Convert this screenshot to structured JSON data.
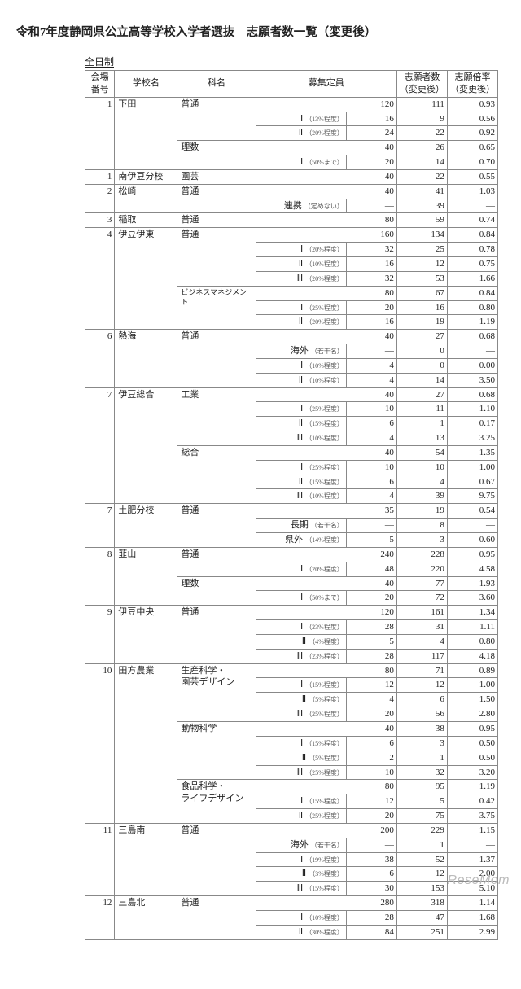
{
  "title": "令和7年度静岡県公立高等学校入学者選抜　志願者数一覧（変更後）",
  "systemLabel": "全日制",
  "headers": {
    "venue": "会場\n番号",
    "school": "学校名",
    "dept": "科名",
    "capacity": "募集定員",
    "applicants": "志願者数\n（変更後）",
    "ratio": "志願倍率\n（変更後）"
  },
  "watermark": "ReseMom",
  "rows": [
    {
      "v": "1",
      "sch": "下田",
      "dept": "普通",
      "sub": "",
      "note": "",
      "cap": "120",
      "app": "111",
      "ratio": "0.93",
      "vSpan": 5,
      "schSpan": 5,
      "deptSpan": 3
    },
    {
      "sub": "Ⅰ",
      "note": "（13%程度）",
      "cap": "16",
      "app": "9",
      "ratio": "0.56"
    },
    {
      "sub": "Ⅱ",
      "note": "（20%程度）",
      "cap": "24",
      "app": "22",
      "ratio": "0.92"
    },
    {
      "dept": "理数",
      "sub": "",
      "note": "",
      "cap": "40",
      "app": "26",
      "ratio": "0.65",
      "deptSpan": 2
    },
    {
      "sub": "Ⅰ",
      "note": "（50%まで）",
      "cap": "20",
      "app": "14",
      "ratio": "0.70"
    },
    {
      "v": "1",
      "sch": "南伊豆分校",
      "dept": "園芸",
      "sub": "",
      "note": "",
      "cap": "40",
      "app": "22",
      "ratio": "0.55",
      "vSpan": 1,
      "schSpan": 1,
      "deptSpan": 1
    },
    {
      "v": "2",
      "sch": "松崎",
      "dept": "普通",
      "sub": "",
      "note": "",
      "cap": "40",
      "app": "41",
      "ratio": "1.03",
      "vSpan": 2,
      "schSpan": 2,
      "deptSpan": 2
    },
    {
      "sub": "連携",
      "note": "（定めない）",
      "cap": "—",
      "app": "39",
      "ratio": "—"
    },
    {
      "v": "3",
      "sch": "稲取",
      "dept": "普通",
      "sub": "",
      "note": "",
      "cap": "80",
      "app": "59",
      "ratio": "0.74",
      "vSpan": 1,
      "schSpan": 1,
      "deptSpan": 1
    },
    {
      "v": "4",
      "sch": "伊豆伊東",
      "dept": "普通",
      "sub": "",
      "note": "",
      "cap": "160",
      "app": "134",
      "ratio": "0.84",
      "vSpan": 7,
      "schSpan": 7,
      "deptSpan": 4
    },
    {
      "sub": "Ⅰ",
      "note": "（20%程度）",
      "cap": "32",
      "app": "25",
      "ratio": "0.78"
    },
    {
      "sub": "Ⅱ",
      "note": "（10%程度）",
      "cap": "16",
      "app": "12",
      "ratio": "0.75"
    },
    {
      "sub": "Ⅲ",
      "note": "（20%程度）",
      "cap": "32",
      "app": "53",
      "ratio": "1.66"
    },
    {
      "dept": "ビジネスマネジメント",
      "deptSmall": true,
      "sub": "",
      "note": "",
      "cap": "80",
      "app": "67",
      "ratio": "0.84",
      "deptSpan": 3
    },
    {
      "sub": "Ⅰ",
      "note": "（25%程度）",
      "cap": "20",
      "app": "16",
      "ratio": "0.80"
    },
    {
      "sub": "Ⅱ",
      "note": "（20%程度）",
      "cap": "16",
      "app": "19",
      "ratio": "1.19"
    },
    {
      "v": "6",
      "sch": "熱海",
      "dept": "普通",
      "sub": "",
      "note": "",
      "cap": "40",
      "app": "27",
      "ratio": "0.68",
      "vSpan": 4,
      "schSpan": 4,
      "deptSpan": 4
    },
    {
      "sub": "海外",
      "note": "（若干名）",
      "cap": "—",
      "app": "0",
      "ratio": "—"
    },
    {
      "sub": "Ⅰ",
      "note": "（10%程度）",
      "cap": "4",
      "app": "0",
      "ratio": "0.00"
    },
    {
      "sub": "Ⅱ",
      "note": "（10%程度）",
      "cap": "4",
      "app": "14",
      "ratio": "3.50"
    },
    {
      "v": "7",
      "sch": "伊豆総合",
      "dept": "工業",
      "sub": "",
      "note": "",
      "cap": "40",
      "app": "27",
      "ratio": "0.68",
      "vSpan": 8,
      "schSpan": 8,
      "deptSpan": 4
    },
    {
      "sub": "Ⅰ",
      "note": "（25%程度）",
      "cap": "10",
      "app": "11",
      "ratio": "1.10"
    },
    {
      "sub": "Ⅱ",
      "note": "（15%程度）",
      "cap": "6",
      "app": "1",
      "ratio": "0.17"
    },
    {
      "sub": "Ⅲ",
      "note": "（10%程度）",
      "cap": "4",
      "app": "13",
      "ratio": "3.25"
    },
    {
      "dept": "総合",
      "sub": "",
      "note": "",
      "cap": "40",
      "app": "54",
      "ratio": "1.35",
      "deptSpan": 4
    },
    {
      "sub": "Ⅰ",
      "note": "（25%程度）",
      "cap": "10",
      "app": "10",
      "ratio": "1.00"
    },
    {
      "sub": "Ⅱ",
      "note": "（15%程度）",
      "cap": "6",
      "app": "4",
      "ratio": "0.67"
    },
    {
      "sub": "Ⅲ",
      "note": "（10%程度）",
      "cap": "4",
      "app": "39",
      "ratio": "9.75"
    },
    {
      "v": "7",
      "sch": "土肥分校",
      "dept": "普通",
      "sub": "",
      "note": "",
      "cap": "35",
      "app": "19",
      "ratio": "0.54",
      "vSpan": 3,
      "schSpan": 3,
      "deptSpan": 3
    },
    {
      "sub": "長期",
      "note": "（若干名）",
      "cap": "—",
      "app": "8",
      "ratio": "—"
    },
    {
      "sub": "県外",
      "note": "（14%程度）",
      "cap": "5",
      "app": "3",
      "ratio": "0.60"
    },
    {
      "v": "8",
      "sch": "韮山",
      "dept": "普通",
      "sub": "",
      "note": "",
      "cap": "240",
      "app": "228",
      "ratio": "0.95",
      "vSpan": 4,
      "schSpan": 4,
      "deptSpan": 2
    },
    {
      "sub": "Ⅰ",
      "note": "（20%程度）",
      "cap": "48",
      "app": "220",
      "ratio": "4.58"
    },
    {
      "dept": "理数",
      "sub": "",
      "note": "",
      "cap": "40",
      "app": "77",
      "ratio": "1.93",
      "deptSpan": 2
    },
    {
      "sub": "Ⅰ",
      "note": "（50%まで）",
      "cap": "20",
      "app": "72",
      "ratio": "3.60"
    },
    {
      "v": "9",
      "sch": "伊豆中央",
      "dept": "普通",
      "sub": "",
      "note": "",
      "cap": "120",
      "app": "161",
      "ratio": "1.34",
      "vSpan": 4,
      "schSpan": 4,
      "deptSpan": 4
    },
    {
      "sub": "Ⅰ",
      "note": "（23%程度）",
      "cap": "28",
      "app": "31",
      "ratio": "1.11"
    },
    {
      "sub": "Ⅱ",
      "note": "（4%程度）",
      "cap": "5",
      "app": "4",
      "ratio": "0.80"
    },
    {
      "sub": "Ⅲ",
      "note": "（23%程度）",
      "cap": "28",
      "app": "117",
      "ratio": "4.18"
    },
    {
      "v": "10",
      "sch": "田方農業",
      "dept": "生産科学・\n園芸デザイン",
      "sub": "",
      "note": "",
      "cap": "80",
      "app": "71",
      "ratio": "0.89",
      "vSpan": 11,
      "schSpan": 11,
      "deptSpan": 4
    },
    {
      "sub": "Ⅰ",
      "note": "（15%程度）",
      "cap": "12",
      "app": "12",
      "ratio": "1.00"
    },
    {
      "sub": "Ⅱ",
      "note": "（5%程度）",
      "cap": "4",
      "app": "6",
      "ratio": "1.50"
    },
    {
      "sub": "Ⅲ",
      "note": "（25%程度）",
      "cap": "20",
      "app": "56",
      "ratio": "2.80"
    },
    {
      "dept": "動物科学",
      "sub": "",
      "note": "",
      "cap": "40",
      "app": "38",
      "ratio": "0.95",
      "deptSpan": 4
    },
    {
      "sub": "Ⅰ",
      "note": "（15%程度）",
      "cap": "6",
      "app": "3",
      "ratio": "0.50"
    },
    {
      "sub": "Ⅱ",
      "note": "（5%程度）",
      "cap": "2",
      "app": "1",
      "ratio": "0.50"
    },
    {
      "sub": "Ⅲ",
      "note": "（25%程度）",
      "cap": "10",
      "app": "32",
      "ratio": "3.20"
    },
    {
      "dept": "食品科学・\nライフデザイン",
      "sub": "",
      "note": "",
      "cap": "80",
      "app": "95",
      "ratio": "1.19",
      "deptSpan": 3
    },
    {
      "sub": "Ⅰ",
      "note": "（15%程度）",
      "cap": "12",
      "app": "5",
      "ratio": "0.42"
    },
    {
      "sub": "Ⅱ",
      "note": "（25%程度）",
      "cap": "20",
      "app": "75",
      "ratio": "3.75"
    },
    {
      "v": "11",
      "sch": "三島南",
      "dept": "普通",
      "sub": "",
      "note": "",
      "cap": "200",
      "app": "229",
      "ratio": "1.15",
      "vSpan": 5,
      "schSpan": 5,
      "deptSpan": 5
    },
    {
      "sub": "海外",
      "note": "（若干名）",
      "cap": "—",
      "app": "1",
      "ratio": "—"
    },
    {
      "sub": "Ⅰ",
      "note": "（19%程度）",
      "cap": "38",
      "app": "52",
      "ratio": "1.37"
    },
    {
      "sub": "Ⅱ",
      "note": "（3%程度）",
      "cap": "6",
      "app": "12",
      "ratio": "2.00"
    },
    {
      "sub": "Ⅲ",
      "note": "（15%程度）",
      "cap": "30",
      "app": "153",
      "ratio": "5.10"
    },
    {
      "v": "12",
      "sch": "三島北",
      "dept": "普通",
      "sub": "",
      "note": "",
      "cap": "280",
      "app": "318",
      "ratio": "1.14",
      "vSpan": 3,
      "schSpan": 3,
      "deptSpan": 3
    },
    {
      "sub": "Ⅰ",
      "note": "（10%程度）",
      "cap": "28",
      "app": "47",
      "ratio": "1.68"
    },
    {
      "sub": "Ⅱ",
      "note": "（30%程度）",
      "cap": "84",
      "app": "251",
      "ratio": "2.99"
    }
  ]
}
